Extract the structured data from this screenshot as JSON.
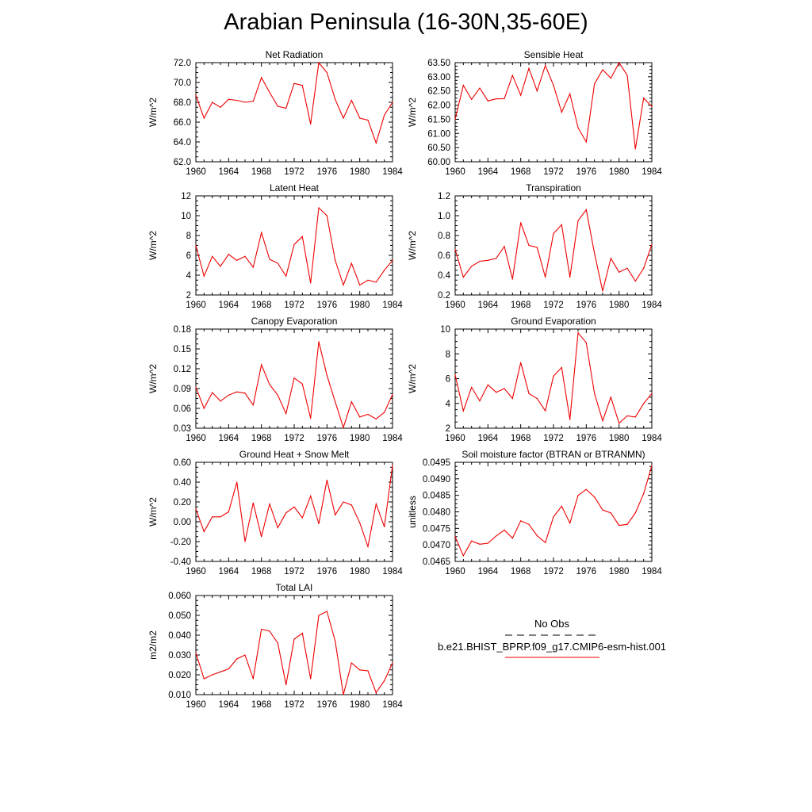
{
  "title": "Arabian Peninsula (16-30N,35-60E)",
  "series_color": "#ee0000",
  "obs_color": "#000000",
  "legend": {
    "obs_label": "No Obs",
    "model_label": "b.e21.BHIST_BPRP.f09_g17.CMIP6-esm-hist.001"
  },
  "chart_data": [
    {
      "type": "line",
      "title": "Net Radiation",
      "ylabel": "W/m^2",
      "xlabel": "",
      "xlim": [
        1960,
        1984
      ],
      "ylim": [
        62,
        72
      ],
      "x_ticks": [
        "1960",
        "1964",
        "1968",
        "1972",
        "1976",
        "1980",
        "1984"
      ],
      "y_ticks": [
        "62.0",
        "64.0",
        "66.0",
        "68.0",
        "70.0",
        "72.0"
      ],
      "x": [
        1960,
        1961,
        1962,
        1963,
        1964,
        1965,
        1966,
        1967,
        1968,
        1969,
        1970,
        1971,
        1972,
        1973,
        1974,
        1975,
        1976,
        1977,
        1978,
        1979,
        1980,
        1981,
        1982,
        1983,
        1984
      ],
      "values": [
        68.7,
        66.4,
        68.0,
        67.5,
        68.3,
        68.2,
        68.0,
        68.1,
        70.5,
        69.0,
        67.6,
        67.4,
        69.9,
        69.7,
        65.8,
        72.0,
        71.0,
        68.3,
        66.4,
        68.2,
        66.4,
        66.2,
        63.9,
        66.7,
        68.0
      ]
    },
    {
      "type": "line",
      "title": "Sensible Heat",
      "ylabel": "W/m^2",
      "xlabel": "",
      "xlim": [
        1960,
        1984
      ],
      "ylim": [
        60,
        63.5
      ],
      "x_ticks": [
        "1960",
        "1964",
        "1968",
        "1972",
        "1976",
        "1980",
        "1984"
      ],
      "y_ticks": [
        "60.00",
        "60.50",
        "61.00",
        "61.50",
        "62.00",
        "62.50",
        "63.00",
        "63.50"
      ],
      "x": [
        1960,
        1961,
        1962,
        1963,
        1964,
        1965,
        1966,
        1967,
        1968,
        1969,
        1970,
        1971,
        1972,
        1973,
        1974,
        1975,
        1976,
        1977,
        1978,
        1979,
        1980,
        1981,
        1982,
        1983,
        1984
      ],
      "values": [
        61.5,
        62.7,
        62.2,
        62.6,
        62.15,
        62.22,
        62.23,
        63.05,
        62.35,
        63.3,
        62.5,
        63.4,
        62.7,
        61.75,
        62.4,
        61.2,
        60.7,
        62.75,
        63.25,
        62.95,
        63.5,
        63.05,
        60.45,
        62.25,
        61.95
      ]
    },
    {
      "type": "line",
      "title": "Latent Heat",
      "ylabel": "W/m^2",
      "xlabel": "",
      "xlim": [
        1960,
        1984
      ],
      "ylim": [
        2,
        12
      ],
      "x_ticks": [
        "1960",
        "1964",
        "1968",
        "1972",
        "1976",
        "1980",
        "1984"
      ],
      "y_ticks": [
        "2",
        "4",
        "6",
        "8",
        "10",
        "12"
      ],
      "x": [
        1960,
        1961,
        1962,
        1963,
        1964,
        1965,
        1966,
        1967,
        1968,
        1969,
        1970,
        1971,
        1972,
        1973,
        1974,
        1975,
        1976,
        1977,
        1978,
        1979,
        1980,
        1981,
        1982,
        1983,
        1984
      ],
      "values": [
        7.0,
        3.9,
        5.9,
        4.9,
        6.1,
        5.5,
        5.9,
        4.8,
        8.3,
        5.6,
        5.2,
        3.9,
        7.1,
        7.9,
        3.2,
        10.8,
        10.0,
        5.5,
        3.0,
        5.2,
        3.0,
        3.5,
        3.3,
        4.5,
        5.5
      ]
    },
    {
      "type": "line",
      "title": "Transpiration",
      "ylabel": "W/m^2",
      "xlabel": "",
      "xlim": [
        1960,
        1984
      ],
      "ylim": [
        0.2,
        1.2
      ],
      "x_ticks": [
        "1960",
        "1964",
        "1968",
        "1972",
        "1976",
        "1980",
        "1984"
      ],
      "y_ticks": [
        "0.2",
        "0.4",
        "0.6",
        "0.8",
        "1.0",
        "1.2"
      ],
      "x": [
        1960,
        1961,
        1962,
        1963,
        1964,
        1965,
        1966,
        1967,
        1968,
        1969,
        1970,
        1971,
        1972,
        1973,
        1974,
        1975,
        1976,
        1977,
        1978,
        1979,
        1980,
        1981,
        1982,
        1983,
        1984
      ],
      "values": [
        0.66,
        0.38,
        0.49,
        0.54,
        0.55,
        0.57,
        0.69,
        0.36,
        0.93,
        0.7,
        0.68,
        0.38,
        0.82,
        0.91,
        0.38,
        0.95,
        1.06,
        0.62,
        0.24,
        0.57,
        0.43,
        0.47,
        0.34,
        0.47,
        0.71
      ]
    },
    {
      "type": "line",
      "title": "Canopy Evaporation",
      "ylabel": "W/m^2",
      "xlabel": "",
      "xlim": [
        1960,
        1984
      ],
      "ylim": [
        0.03,
        0.18
      ],
      "x_ticks": [
        "1960",
        "1964",
        "1968",
        "1972",
        "1976",
        "1980",
        "1984"
      ],
      "y_ticks": [
        "0.03",
        "0.06",
        "0.09",
        "0.12",
        "0.15",
        "0.18"
      ],
      "x": [
        1960,
        1961,
        1962,
        1963,
        1964,
        1965,
        1966,
        1967,
        1968,
        1969,
        1970,
        1971,
        1972,
        1973,
        1974,
        1975,
        1976,
        1977,
        1978,
        1979,
        1980,
        1981,
        1982,
        1983,
        1984
      ],
      "values": [
        0.092,
        0.06,
        0.084,
        0.071,
        0.08,
        0.085,
        0.083,
        0.065,
        0.126,
        0.096,
        0.08,
        0.052,
        0.106,
        0.097,
        0.045,
        0.161,
        0.11,
        0.07,
        0.031,
        0.07,
        0.047,
        0.051,
        0.044,
        0.054,
        0.081
      ]
    },
    {
      "type": "line",
      "title": "Ground Evaporation",
      "ylabel": "W/m^2",
      "xlabel": "",
      "xlim": [
        1960,
        1984
      ],
      "ylim": [
        2,
        10
      ],
      "x_ticks": [
        "1960",
        "1964",
        "1968",
        "1972",
        "1976",
        "1980",
        "1984"
      ],
      "y_ticks": [
        "2",
        "4",
        "6",
        "8",
        "10"
      ],
      "x": [
        1960,
        1961,
        1962,
        1963,
        1964,
        1965,
        1966,
        1967,
        1968,
        1969,
        1970,
        1971,
        1972,
        1973,
        1974,
        1975,
        1976,
        1977,
        1978,
        1979,
        1980,
        1981,
        1982,
        1983,
        1984
      ],
      "values": [
        6.3,
        3.4,
        5.3,
        4.2,
        5.5,
        4.9,
        5.2,
        4.4,
        7.3,
        4.8,
        4.4,
        3.4,
        6.2,
        6.9,
        2.7,
        9.7,
        8.9,
        4.8,
        2.6,
        4.5,
        2.4,
        3.0,
        2.9,
        4.0,
        4.8
      ]
    },
    {
      "type": "line",
      "title": "Ground Heat + Snow Melt",
      "ylabel": "W/m^2",
      "xlabel": "",
      "xlim": [
        1960,
        1984
      ],
      "ylim": [
        -0.4,
        0.6
      ],
      "x_ticks": [
        "1960",
        "1964",
        "1968",
        "1972",
        "1976",
        "1980",
        "1984"
      ],
      "y_ticks": [
        "-0.40",
        "-0.20",
        "0.00",
        "0.20",
        "0.40",
        "0.60"
      ],
      "x": [
        1960,
        1961,
        1962,
        1963,
        1964,
        1965,
        1966,
        1967,
        1968,
        1969,
        1970,
        1971,
        1972,
        1973,
        1974,
        1975,
        1976,
        1977,
        1978,
        1979,
        1980,
        1981,
        1982,
        1983,
        1984
      ],
      "values": [
        0.13,
        -0.1,
        0.05,
        0.05,
        0.1,
        0.4,
        -0.2,
        0.19,
        -0.15,
        0.18,
        -0.06,
        0.09,
        0.15,
        0.04,
        0.26,
        -0.02,
        0.42,
        0.07,
        0.2,
        0.17,
        -0.01,
        -0.25,
        0.18,
        -0.05,
        0.57
      ]
    },
    {
      "type": "line",
      "title": "Soil moisture factor (BTRAN or BTRANMN)",
      "ylabel": "unitless",
      "xlabel": "",
      "xlim": [
        1960,
        1984
      ],
      "ylim": [
        0.0465,
        0.0495
      ],
      "x_ticks": [
        "1960",
        "1964",
        "1968",
        "1972",
        "1976",
        "1980",
        "1984"
      ],
      "y_ticks": [
        "0.0465",
        "0.0470",
        "0.0475",
        "0.0480",
        "0.0485",
        "0.0490",
        "0.0495"
      ],
      "x": [
        1960,
        1961,
        1962,
        1963,
        1964,
        1965,
        1966,
        1967,
        1968,
        1969,
        1970,
        1971,
        1972,
        1973,
        1974,
        1975,
        1976,
        1977,
        1978,
        1979,
        1980,
        1981,
        1982,
        1983,
        1984
      ],
      "values": [
        0.04725,
        0.04667,
        0.04712,
        0.04702,
        0.04705,
        0.04727,
        0.04745,
        0.0472,
        0.04773,
        0.04762,
        0.04728,
        0.04707,
        0.04785,
        0.04817,
        0.04766,
        0.0485,
        0.04868,
        0.04845,
        0.04806,
        0.04797,
        0.04759,
        0.04762,
        0.04797,
        0.04855,
        0.0494
      ]
    },
    {
      "type": "line",
      "title": "Total LAI",
      "ylabel": "m2/m2",
      "xlabel": "",
      "xlim": [
        1960,
        1984
      ],
      "ylim": [
        0.01,
        0.06
      ],
      "x_ticks": [
        "1960",
        "1964",
        "1968",
        "1972",
        "1976",
        "1980",
        "1984"
      ],
      "y_ticks": [
        "0.010",
        "0.020",
        "0.030",
        "0.040",
        "0.050",
        "0.060"
      ],
      "x": [
        1960,
        1961,
        1962,
        1963,
        1964,
        1965,
        1966,
        1967,
        1968,
        1969,
        1970,
        1971,
        1972,
        1973,
        1974,
        1975,
        1976,
        1977,
        1978,
        1979,
        1980,
        1981,
        1982,
        1983,
        1984
      ],
      "values": [
        0.031,
        0.018,
        0.02,
        0.0215,
        0.023,
        0.028,
        0.03,
        0.018,
        0.043,
        0.042,
        0.036,
        0.015,
        0.038,
        0.041,
        0.018,
        0.05,
        0.052,
        0.037,
        0.01,
        0.026,
        0.0225,
        0.022,
        0.011,
        0.017,
        0.026
      ]
    }
  ]
}
